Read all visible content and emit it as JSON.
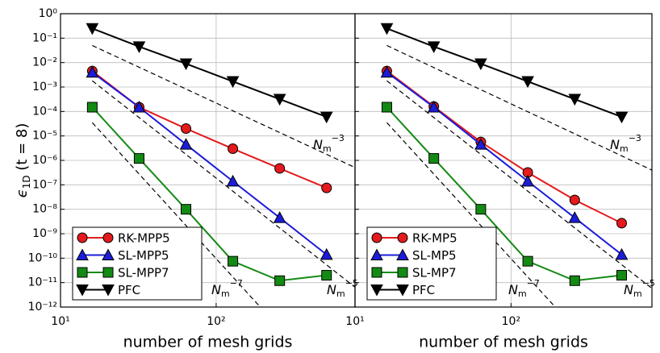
{
  "chart_data": [
    {
      "type": "line",
      "xlog": true,
      "ylog": true,
      "grid": true,
      "legend": "lower left",
      "xlabel": "number of mesh grids",
      "ylabel": {
        "symbol": "ϵ",
        "sub": "1D",
        "rest": " (t = 8)"
      },
      "xlim": [
        10,
        780
      ],
      "ylim": [
        1e-12,
        1
      ],
      "xticks": [
        {
          "value": 10,
          "label": "10¹"
        },
        {
          "value": 100,
          "label": "10²"
        }
      ],
      "yticks": [
        {
          "value": 1,
          "label": "10⁰"
        },
        {
          "value": 0.1,
          "label": "10⁻¹"
        },
        {
          "value": 0.01,
          "label": "10⁻²"
        },
        {
          "value": 0.001,
          "label": "10⁻³"
        },
        {
          "value": 0.0001,
          "label": "10⁻⁴"
        },
        {
          "value": 1e-05,
          "label": "10⁻⁵"
        },
        {
          "value": 1e-06,
          "label": "10⁻⁶"
        },
        {
          "value": 1e-07,
          "label": "10⁻⁷"
        },
        {
          "value": 1e-08,
          "label": "10⁻⁸"
        },
        {
          "value": 1e-09,
          "label": "10⁻⁹"
        },
        {
          "value": 1e-10,
          "label": "10⁻¹⁰"
        },
        {
          "value": 1e-11,
          "label": "10⁻¹¹"
        },
        {
          "value": 1e-12,
          "label": "10⁻¹²"
        }
      ],
      "x": [
        16,
        32,
        64,
        128,
        256,
        512
      ],
      "series": [
        {
          "name": "RK-MPP5",
          "color": "#e41a1c",
          "marker": "circle",
          "values": [
            0.0045,
            0.00015,
            2e-05,
            3e-06,
            4.7e-07,
            7.5e-08
          ]
        },
        {
          "name": "SL-MPP5",
          "color": "#1c1cd9",
          "marker": "triangle-up",
          "values": [
            0.004,
            0.00015,
            4.5e-06,
            1.4e-07,
            4.5e-09,
            1.4e-10
          ]
        },
        {
          "name": "SL-MPP7",
          "color": "#138a13",
          "marker": "square",
          "values": [
            0.00015,
            1.2e-06,
            1e-08,
            7.5e-11,
            1.2e-11,
            2e-11
          ]
        },
        {
          "name": "PFC",
          "color": "#000000",
          "marker": "triangle-down",
          "values": [
            0.25,
            0.045,
            0.009,
            0.0017,
            0.00032,
            6e-05
          ]
        }
      ],
      "reference_lines": [
        {
          "label": {
            "base": "N",
            "sub": "m",
            "sup": "−3"
          },
          "x": [
            16,
            780
          ],
          "values": [
            0.05,
            5.1e-07
          ]
        },
        {
          "label": {
            "base": "N",
            "sub": "m",
            "sup": "−5"
          },
          "x": [
            16,
            780
          ],
          "values": [
            0.0018,
            6.5e-12
          ]
        },
        {
          "label": {
            "base": "N",
            "sub": "m",
            "sup": "−7"
          },
          "x": [
            16,
            192
          ],
          "values": [
            3.5e-05,
            1e-12
          ]
        }
      ]
    },
    {
      "type": "line",
      "xlog": true,
      "ylog": true,
      "grid": true,
      "legend": "lower left",
      "xlabel": "number of mesh grids",
      "xlim": [
        10,
        800
      ],
      "ylim": [
        1e-12,
        1
      ],
      "xticks": [
        {
          "value": 10,
          "label": "10¹"
        },
        {
          "value": 100,
          "label": "10²"
        }
      ],
      "yticks": [
        1,
        0.1,
        0.01,
        0.001,
        0.0001,
        1e-05,
        1e-06,
        1e-07,
        1e-08,
        1e-09,
        1e-10,
        1e-11,
        1e-12
      ],
      "x": [
        16,
        32,
        64,
        128,
        256,
        512
      ],
      "series": [
        {
          "name": "RK-MP5",
          "color": "#e41a1c",
          "marker": "circle",
          "values": [
            0.0045,
            0.00016,
            5.7e-06,
            3.2e-07,
            2.4e-08,
            2.7e-09
          ]
        },
        {
          "name": "SL-MP5",
          "color": "#1c1cd9",
          "marker": "triangle-up",
          "values": [
            0.004,
            0.00015,
            4.5e-06,
            1.4e-07,
            4.5e-09,
            1.4e-10
          ]
        },
        {
          "name": "SL-MP7",
          "color": "#138a13",
          "marker": "square",
          "values": [
            0.00015,
            1.2e-06,
            1e-08,
            7.5e-11,
            1.2e-11,
            2e-11
          ]
        },
        {
          "name": "PFC",
          "color": "#000000",
          "marker": "triangle-down",
          "values": [
            0.25,
            0.045,
            0.009,
            0.0017,
            0.00032,
            6e-05
          ]
        }
      ],
      "reference_lines": [
        {
          "label": {
            "base": "N",
            "sub": "m",
            "sup": "−3"
          },
          "x": [
            16,
            800
          ],
          "values": [
            0.05,
            4e-07
          ]
        },
        {
          "label": {
            "base": "N",
            "sub": "m",
            "sup": "−5"
          },
          "x": [
            16,
            800
          ],
          "values": [
            0.0018,
            5.8e-12
          ]
        },
        {
          "label": {
            "base": "N",
            "sub": "m",
            "sup": "−7"
          },
          "x": [
            16,
            192
          ],
          "values": [
            3.5e-05,
            1e-12
          ]
        }
      ]
    }
  ]
}
